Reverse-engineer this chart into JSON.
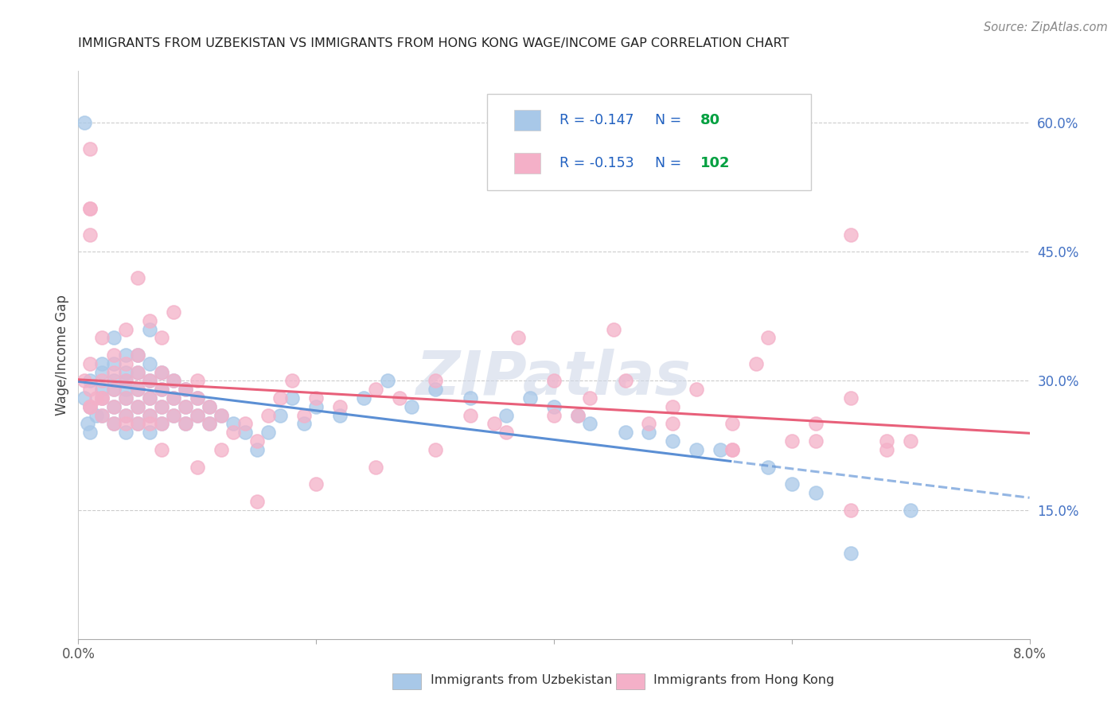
{
  "title": "IMMIGRANTS FROM UZBEKISTAN VS IMMIGRANTS FROM HONG KONG WAGE/INCOME GAP CORRELATION CHART",
  "source": "Source: ZipAtlas.com",
  "ylabel": "Wage/Income Gap",
  "xlim": [
    0.0,
    0.08
  ],
  "ylim": [
    0.0,
    0.66
  ],
  "yticks_right": [
    0.15,
    0.3,
    0.45,
    0.6
  ],
  "ytick_labels_right": [
    "15.0%",
    "30.0%",
    "45.0%",
    "60.0%"
  ],
  "uzbekistan_color": "#a8c8e8",
  "hong_kong_color": "#f4b0c8",
  "uzbekistan_line_color": "#5b8fd4",
  "hong_kong_line_color": "#e8607a",
  "uzbekistan_R": -0.147,
  "uzbekistan_N": 80,
  "hong_kong_R": -0.153,
  "hong_kong_N": 102,
  "legend_R_color": "#2060c0",
  "legend_N_color": "#00a040",
  "watermark": "ZIPatlas",
  "background_color": "#ffffff",
  "uzbekistan_x": [
    0.0005,
    0.0008,
    0.001,
    0.001,
    0.001,
    0.0015,
    0.002,
    0.002,
    0.002,
    0.002,
    0.002,
    0.003,
    0.003,
    0.003,
    0.003,
    0.003,
    0.003,
    0.004,
    0.004,
    0.004,
    0.004,
    0.004,
    0.004,
    0.004,
    0.005,
    0.005,
    0.005,
    0.005,
    0.005,
    0.006,
    0.006,
    0.006,
    0.006,
    0.006,
    0.006,
    0.007,
    0.007,
    0.007,
    0.007,
    0.008,
    0.008,
    0.008,
    0.009,
    0.009,
    0.009,
    0.01,
    0.01,
    0.011,
    0.011,
    0.012,
    0.013,
    0.014,
    0.015,
    0.016,
    0.017,
    0.018,
    0.019,
    0.02,
    0.022,
    0.024,
    0.026,
    0.028,
    0.03,
    0.033,
    0.036,
    0.04,
    0.043,
    0.046,
    0.05,
    0.052,
    0.0005,
    0.038,
    0.042,
    0.048,
    0.054,
    0.058,
    0.06,
    0.062,
    0.065,
    0.07
  ],
  "uzbekistan_y": [
    0.28,
    0.25,
    0.27,
    0.3,
    0.24,
    0.26,
    0.29,
    0.31,
    0.26,
    0.28,
    0.32,
    0.27,
    0.29,
    0.3,
    0.25,
    0.32,
    0.35,
    0.28,
    0.3,
    0.26,
    0.24,
    0.31,
    0.33,
    0.29,
    0.27,
    0.29,
    0.31,
    0.25,
    0.33,
    0.26,
    0.28,
    0.3,
    0.32,
    0.24,
    0.36,
    0.27,
    0.29,
    0.31,
    0.25,
    0.26,
    0.28,
    0.3,
    0.27,
    0.29,
    0.25,
    0.26,
    0.28,
    0.25,
    0.27,
    0.26,
    0.25,
    0.24,
    0.22,
    0.24,
    0.26,
    0.28,
    0.25,
    0.27,
    0.26,
    0.28,
    0.3,
    0.27,
    0.29,
    0.28,
    0.26,
    0.27,
    0.25,
    0.24,
    0.23,
    0.22,
    0.6,
    0.28,
    0.26,
    0.24,
    0.22,
    0.2,
    0.18,
    0.17,
    0.1,
    0.15
  ],
  "hong_kong_x": [
    0.0005,
    0.001,
    0.001,
    0.001,
    0.0015,
    0.002,
    0.002,
    0.002,
    0.002,
    0.003,
    0.003,
    0.003,
    0.003,
    0.003,
    0.004,
    0.004,
    0.004,
    0.004,
    0.004,
    0.005,
    0.005,
    0.005,
    0.005,
    0.005,
    0.005,
    0.006,
    0.006,
    0.006,
    0.006,
    0.006,
    0.007,
    0.007,
    0.007,
    0.007,
    0.007,
    0.008,
    0.008,
    0.008,
    0.008,
    0.009,
    0.009,
    0.009,
    0.01,
    0.01,
    0.01,
    0.011,
    0.011,
    0.012,
    0.012,
    0.013,
    0.014,
    0.015,
    0.016,
    0.017,
    0.018,
    0.019,
    0.02,
    0.022,
    0.025,
    0.027,
    0.03,
    0.033,
    0.036,
    0.04,
    0.043,
    0.046,
    0.05,
    0.052,
    0.055,
    0.057,
    0.06,
    0.062,
    0.065,
    0.065,
    0.068,
    0.037,
    0.042,
    0.048,
    0.055,
    0.058,
    0.062,
    0.065,
    0.068,
    0.07,
    0.05,
    0.055,
    0.045,
    0.04,
    0.035,
    0.03,
    0.025,
    0.02,
    0.015,
    0.01,
    0.007,
    0.004,
    0.002,
    0.001,
    0.001,
    0.001,
    0.001,
    0.001
  ],
  "hong_kong_y": [
    0.3,
    0.27,
    0.29,
    0.32,
    0.28,
    0.26,
    0.28,
    0.3,
    0.35,
    0.27,
    0.29,
    0.31,
    0.25,
    0.33,
    0.26,
    0.28,
    0.3,
    0.32,
    0.36,
    0.27,
    0.29,
    0.31,
    0.25,
    0.33,
    0.42,
    0.26,
    0.28,
    0.3,
    0.25,
    0.37,
    0.27,
    0.29,
    0.31,
    0.25,
    0.35,
    0.26,
    0.28,
    0.3,
    0.38,
    0.27,
    0.29,
    0.25,
    0.26,
    0.28,
    0.3,
    0.25,
    0.27,
    0.26,
    0.22,
    0.24,
    0.25,
    0.23,
    0.26,
    0.28,
    0.3,
    0.26,
    0.28,
    0.27,
    0.29,
    0.28,
    0.3,
    0.26,
    0.24,
    0.26,
    0.28,
    0.3,
    0.27,
    0.29,
    0.25,
    0.32,
    0.23,
    0.25,
    0.28,
    0.47,
    0.23,
    0.35,
    0.26,
    0.25,
    0.22,
    0.35,
    0.23,
    0.15,
    0.22,
    0.23,
    0.25,
    0.22,
    0.36,
    0.3,
    0.25,
    0.22,
    0.2,
    0.18,
    0.16,
    0.2,
    0.22,
    0.25,
    0.28,
    0.27,
    0.5,
    0.47,
    0.5,
    0.57
  ]
}
